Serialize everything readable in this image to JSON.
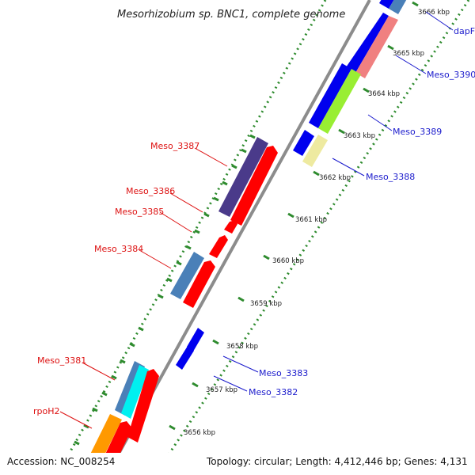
{
  "title": "Mesorhizobium sp. BNC1, complete genome",
  "accession": "Accession: NC_008254",
  "topology": "Topology: circular; Length: 4,412,446 bp; Genes: 4,131",
  "colors": {
    "backbone": "#8c8c8c",
    "tick": "#2e8b2e",
    "label_reverse": "#dd1111",
    "label_forward": "#1a1acc",
    "blue": "#0000ee",
    "red": "#ff0000",
    "steelblue": "#4a80b8",
    "purple": "#4a3a8a",
    "cyan": "#00f0f0",
    "orange": "#ff9900",
    "salmon": "#f08080",
    "lime": "#99ee33",
    "khaki": "#eeeaa0"
  },
  "ticks": [
    "3656 kbp",
    "3657 kbp",
    "3658 kbp",
    "3659 kbp",
    "3660 kbp",
    "3661 kbp",
    "3662 kbp",
    "3663 kbp",
    "3664 kbp",
    "3665 kbp",
    "3666 kbp"
  ],
  "gene_labels": {
    "dapF": "dapF",
    "meso_3390": "Meso_3390",
    "meso_3389": "Meso_3389",
    "meso_3388": "Meso_3388",
    "meso_3387": "Meso_3387",
    "meso_3386": "Meso_3386",
    "meso_3385": "Meso_3385",
    "meso_3384": "Meso_3384",
    "meso_3383": "Meso_3383",
    "meso_3382": "Meso_3382",
    "meso_3381": "Meso_3381",
    "rpoH2": "rpoH2"
  }
}
